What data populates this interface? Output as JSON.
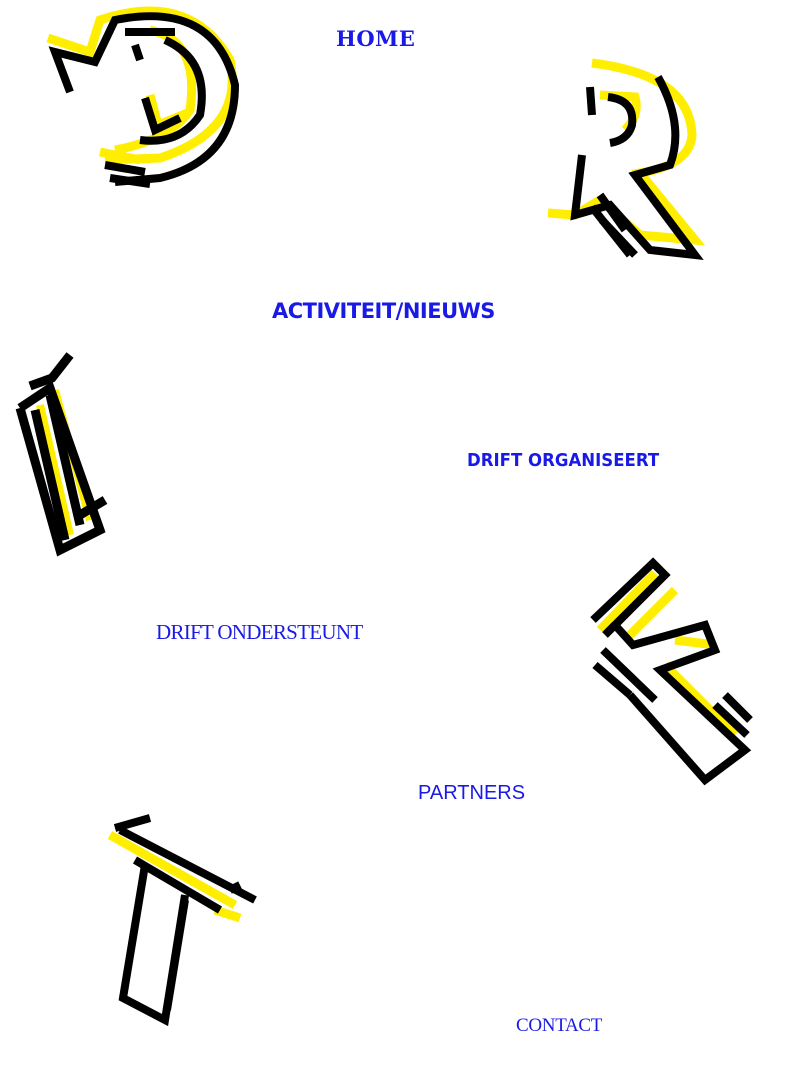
{
  "nav": {
    "home": "HOME",
    "activiteit_nieuws": "ACTIVITEIT/NIEUWS",
    "drift_organiseert": "DRIFT ORGANISEERT",
    "drift_ondersteunt": "DRIFT ONDERSTEUNT",
    "partners": "PARTNERS",
    "contact": "CONTACT"
  },
  "logo_letters": [
    "D",
    "R",
    "I",
    "F",
    "T"
  ],
  "colors": {
    "link": "#1a1ae6",
    "letter_outline": "#000000",
    "letter_accent": "#ffee00",
    "background": "#ffffff"
  }
}
